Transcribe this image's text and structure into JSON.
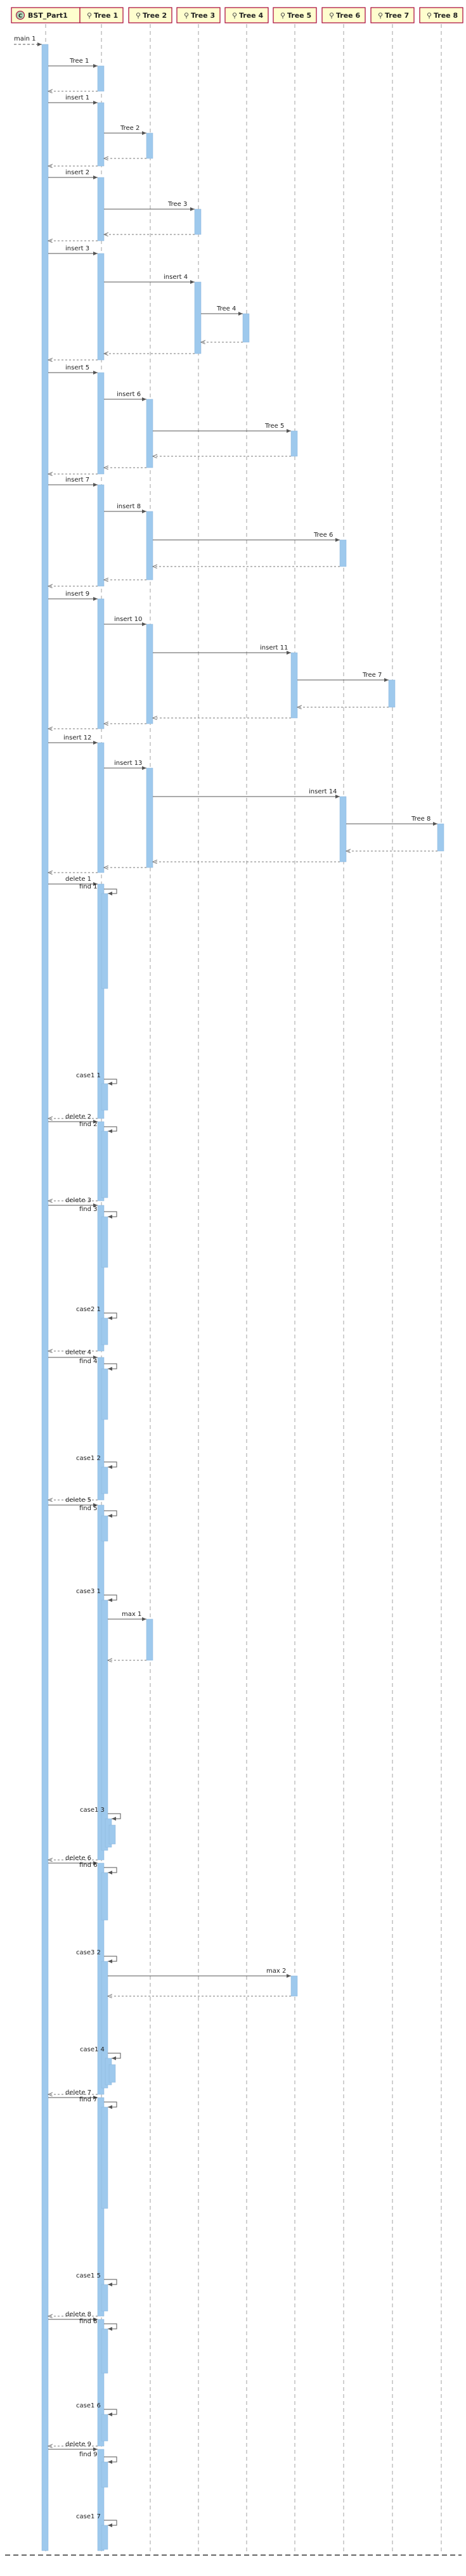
{
  "diagram": {
    "participants": [
      {
        "label": "BST_Part1",
        "kind": "class"
      },
      {
        "label": "Tree 1",
        "kind": "object"
      },
      {
        "label": "Tree 2",
        "kind": "object"
      },
      {
        "label": "Tree 3",
        "kind": "object"
      },
      {
        "label": "Tree 4",
        "kind": "object"
      },
      {
        "label": "Tree 5",
        "kind": "object"
      },
      {
        "label": "Tree 6",
        "kind": "object"
      },
      {
        "label": "Tree 7",
        "kind": "object"
      },
      {
        "label": "Tree 8",
        "kind": "object"
      }
    ],
    "messages": [
      {
        "label": "main 1"
      },
      {
        "label": "Tree 1"
      },
      {
        "label": "insert 1"
      },
      {
        "label": "Tree 2"
      },
      {
        "label": "insert 2"
      },
      {
        "label": "Tree 3"
      },
      {
        "label": "insert 3"
      },
      {
        "label": "insert 4"
      },
      {
        "label": "Tree 4"
      },
      {
        "label": "insert 5"
      },
      {
        "label": "insert 6"
      },
      {
        "label": "Tree 5"
      },
      {
        "label": "insert 7"
      },
      {
        "label": "insert 8"
      },
      {
        "label": "Tree 6"
      },
      {
        "label": "insert 9"
      },
      {
        "label": "insert 10"
      },
      {
        "label": "insert 11"
      },
      {
        "label": "Tree 7"
      },
      {
        "label": "insert 12"
      },
      {
        "label": "insert 13"
      },
      {
        "label": "insert 14"
      },
      {
        "label": "Tree 8"
      },
      {
        "label": "delete 1"
      },
      {
        "label": "find 1"
      },
      {
        "label": "case1 1"
      },
      {
        "label": "delete 2"
      },
      {
        "label": "find 2"
      },
      {
        "label": "delete 3"
      },
      {
        "label": "find 3"
      },
      {
        "label": "case2 1"
      },
      {
        "label": "delete 4"
      },
      {
        "label": "find 4"
      },
      {
        "label": "case1 2"
      },
      {
        "label": "delete 5"
      },
      {
        "label": "find 5"
      },
      {
        "label": "case3 1"
      },
      {
        "label": "max 1"
      },
      {
        "label": "case1 3"
      },
      {
        "label": "delete 6"
      },
      {
        "label": "find 6"
      },
      {
        "label": "case3 2"
      },
      {
        "label": "max 2"
      },
      {
        "label": "case1 4"
      },
      {
        "label": "delete 7"
      },
      {
        "label": "find 7"
      },
      {
        "label": "case1 5"
      },
      {
        "label": "delete 8"
      },
      {
        "label": "find 8"
      },
      {
        "label": "case1 6"
      },
      {
        "label": "delete 9"
      },
      {
        "label": "find 9"
      },
      {
        "label": "case1 7"
      }
    ],
    "colors": {
      "participant_fill": "#fefece",
      "participant_border": "#a80036",
      "lifeline": "#a0a0a0",
      "activation": "#9ec9ed",
      "arrow": "#555555",
      "class_badge": "#add1b2"
    }
  }
}
